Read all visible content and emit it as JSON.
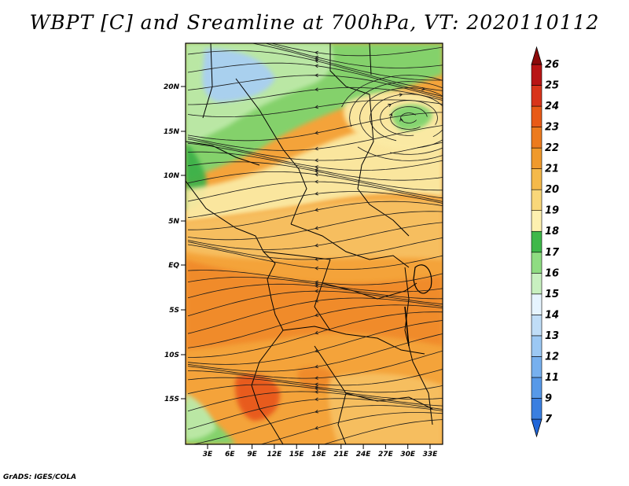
{
  "title": "WBPT [C] and Sreamline at 700hPa, VT: 2020110112",
  "credit": "GrADS: IGES/COLA",
  "lat_ticks": [
    "20N",
    "15N",
    "10N",
    "5N",
    "EQ",
    "5S",
    "10S",
    "15S"
  ],
  "lon_ticks": [
    "3E",
    "6E",
    "9E",
    "12E",
    "15E",
    "18E",
    "21E",
    "24E",
    "27E",
    "30E",
    "33E"
  ],
  "colorbar": {
    "labels": [
      "7",
      "9",
      "11",
      "12",
      "13",
      "14",
      "15",
      "16",
      "17",
      "18",
      "19",
      "20",
      "21",
      "22",
      "23",
      "24",
      "25",
      "26"
    ],
    "colors": [
      "#2166d8",
      "#3a7fe0",
      "#5799e8",
      "#77b0ee",
      "#9cc8f3",
      "#c0ddf7",
      "#e6f4ff",
      "#c8f0c0",
      "#8fdc82",
      "#3fb84a",
      "#fdf0b0",
      "#f9d77a",
      "#f5b94a",
      "#f09a2c",
      "#ec7b1e",
      "#e85a16",
      "#d8341a",
      "#b81414",
      "#8c0a0a"
    ]
  },
  "field_colors": {
    "cool_blue": "#a9cff2",
    "pale_green": "#bde9a8",
    "green": "#7fd46e",
    "dark_green": "#3db149",
    "cream": "#fbeaa4",
    "light_orange": "#f7c062",
    "orange": "#f4a33a",
    "dark_orange": "#f08a2a",
    "red_orange": "#e8591c",
    "streamline": "#1a1a1a",
    "border": "#000000"
  }
}
